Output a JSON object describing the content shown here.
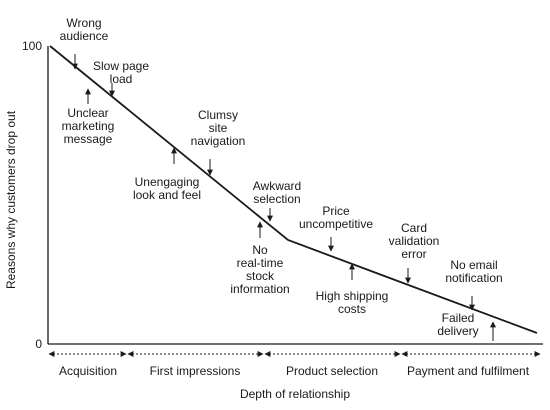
{
  "diagram": {
    "y_axis_title": "Reasons why customers drop out",
    "x_axis_title": "Depth of relationship",
    "y_ticks": [
      "100",
      "0"
    ],
    "stages": [
      "Acquisition",
      "First impressions",
      "Product selection",
      "Payment and fulfilment"
    ],
    "curve_levels": [
      100,
      80,
      54,
      35,
      0
    ],
    "annotations": [
      {
        "lines": [
          "Wrong",
          "audience"
        ],
        "arrow": "down"
      },
      {
        "lines": [
          "Slow page",
          "load"
        ],
        "arrow": "down"
      },
      {
        "lines": [
          "Unclear",
          "marketing",
          "message"
        ],
        "arrow": "up"
      },
      {
        "lines": [
          "Clumsy",
          "site",
          "navigation"
        ],
        "arrow": "down"
      },
      {
        "lines": [
          "Unengaging",
          "look and feel"
        ],
        "arrow": "up"
      },
      {
        "lines": [
          "Awkward",
          "selection"
        ],
        "arrow": "down"
      },
      {
        "lines": [
          "No",
          "real-time",
          "stock",
          "information"
        ],
        "arrow": "up"
      },
      {
        "lines": [
          "Price",
          "uncompetitive"
        ],
        "arrow": "down"
      },
      {
        "lines": [
          "High shipping",
          "costs"
        ],
        "arrow": "up"
      },
      {
        "lines": [
          "Card",
          "validation",
          "error"
        ],
        "arrow": "down"
      },
      {
        "lines": [
          "No email",
          "notification"
        ],
        "arrow": "down"
      },
      {
        "lines": [
          "Failed",
          "delivery"
        ],
        "arrow": "up"
      }
    ]
  }
}
